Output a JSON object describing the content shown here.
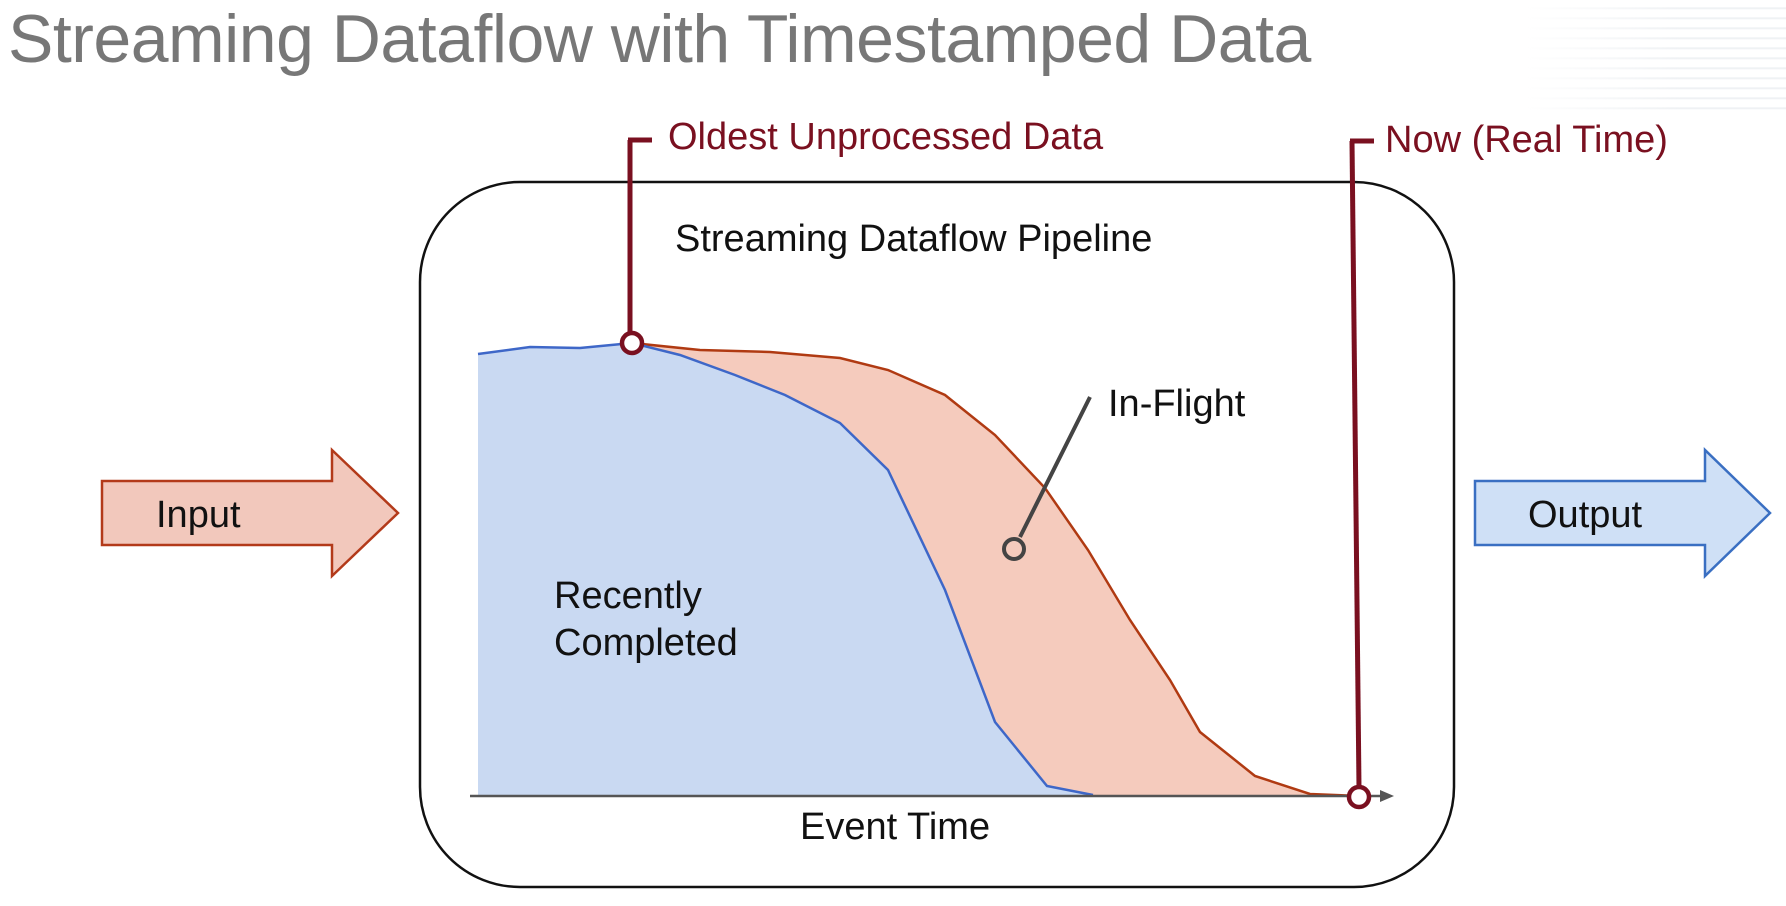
{
  "title": "Streaming Dataflow with Timestamped Data",
  "pipeline_label": "Streaming Dataflow Pipeline",
  "input_label": "Input",
  "output_label": "Output",
  "oldest_marker_label": "Oldest Unprocessed Data",
  "now_marker_label": "Now (Real Time)",
  "in_flight_label": "In-Flight",
  "recently_completed_line1": "Recently",
  "recently_completed_line2": "Completed",
  "axis_label": "Event Time",
  "colors": {
    "completed_fill": "#c9d9f2",
    "completed_stroke": "#3e67c8",
    "inflight_fill": "#f5cbbd",
    "inflight_stroke": "#b03a12",
    "input_fill": "#f2c8bc",
    "input_stroke": "#b33a1a",
    "output_fill": "#cfe0f6",
    "output_stroke": "#3a6fc2",
    "marker": "#7a1020",
    "title": "#777777"
  }
}
